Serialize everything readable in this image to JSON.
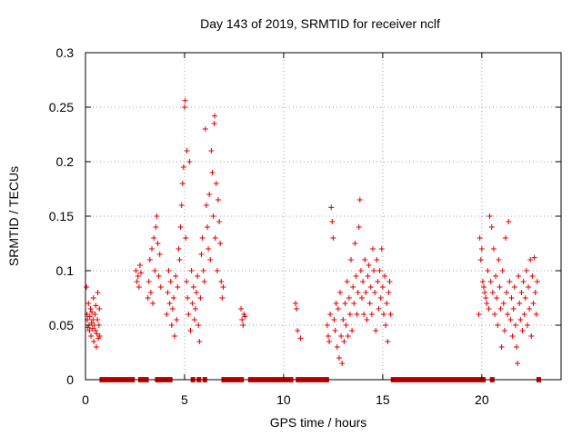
{
  "chart_data": {
    "type": "scatter",
    "title": "Day 143 of 2019, SRMTID for receiver nclf",
    "xlabel": "GPS time / hours",
    "ylabel": "SRMTID / TECUs",
    "xlim": [
      0,
      24
    ],
    "ylim": [
      0,
      0.3
    ],
    "xticks": [
      0,
      5,
      10,
      15,
      20
    ],
    "xtick_labels": [
      "0",
      "5",
      "10",
      "15",
      "20"
    ],
    "yticks": [
      0,
      0.05,
      0.1,
      0.15,
      0.2,
      0.25,
      0.3
    ],
    "ytick_labels": [
      "0",
      "0.05",
      "0.1",
      "0.15",
      "0.2",
      "0.25",
      "0.3"
    ],
    "grid": true,
    "marker": "plus",
    "color": "#e00000",
    "series": [
      {
        "name": "SRMTID",
        "points": [
          [
            0.05,
            0.085
          ],
          [
            0.08,
            0.06
          ],
          [
            0.1,
            0.055
          ],
          [
            0.12,
            0.048
          ],
          [
            0.15,
            0.07
          ],
          [
            0.18,
            0.05
          ],
          [
            0.2,
            0.045
          ],
          [
            0.22,
            0.058
          ],
          [
            0.25,
            0.065
          ],
          [
            0.28,
            0.04
          ],
          [
            0.3,
            0.052
          ],
          [
            0.32,
            0.062
          ],
          [
            0.35,
            0.047
          ],
          [
            0.38,
            0.055
          ],
          [
            0.4,
            0.075
          ],
          [
            0.42,
            0.035
          ],
          [
            0.45,
            0.05
          ],
          [
            0.48,
            0.06
          ],
          [
            0.5,
            0.045
          ],
          [
            0.52,
            0.068
          ],
          [
            0.55,
            0.03
          ],
          [
            0.58,
            0.042
          ],
          [
            0.6,
            0.055
          ],
          [
            0.62,
            0.08
          ],
          [
            0.65,
            0.038
          ],
          [
            0.68,
            0.05
          ],
          [
            0.7,
            0.065
          ],
          [
            0.72,
            0.04
          ],
          [
            2.55,
            0.1
          ],
          [
            2.6,
            0.09
          ],
          [
            2.65,
            0.095
          ],
          [
            2.7,
            0.085
          ],
          [
            2.75,
            0.105
          ],
          [
            2.8,
            0.098
          ],
          [
            3.15,
            0.075
          ],
          [
            3.2,
            0.09
          ],
          [
            3.25,
            0.11
          ],
          [
            3.3,
            0.08
          ],
          [
            3.35,
            0.12
          ],
          [
            3.4,
            0.07
          ],
          [
            3.45,
            0.13
          ],
          [
            3.5,
            0.1
          ],
          [
            3.55,
            0.14
          ],
          [
            3.6,
            0.15
          ],
          [
            3.65,
            0.125
          ],
          [
            3.7,
            0.095
          ],
          [
            3.75,
            0.115
          ],
          [
            3.8,
            0.085
          ],
          [
            4.1,
            0.06
          ],
          [
            4.15,
            0.08
          ],
          [
            4.2,
            0.1
          ],
          [
            4.25,
            0.07
          ],
          [
            4.3,
            0.09
          ],
          [
            4.35,
            0.05
          ],
          [
            4.4,
            0.065
          ],
          [
            4.45,
            0.075
          ],
          [
            4.5,
            0.04
          ],
          [
            4.55,
            0.095
          ],
          [
            4.6,
            0.055
          ],
          [
            4.65,
            0.085
          ],
          [
            4.7,
            0.12
          ],
          [
            4.75,
            0.11
          ],
          [
            4.8,
            0.14
          ],
          [
            4.85,
            0.16
          ],
          [
            4.9,
            0.18
          ],
          [
            4.95,
            0.195
          ],
          [
            5.0,
            0.25
          ],
          [
            5.03,
            0.256
          ],
          [
            5.06,
            0.13
          ],
          [
            5.1,
            0.09
          ],
          [
            5.12,
            0.21
          ],
          [
            5.15,
            0.075
          ],
          [
            5.2,
            0.06
          ],
          [
            5.25,
            0.2
          ],
          [
            5.3,
            0.045
          ],
          [
            5.35,
            0.1
          ],
          [
            5.4,
            0.07
          ],
          [
            5.45,
            0.085
          ],
          [
            5.5,
            0.055
          ],
          [
            5.55,
            0.065
          ],
          [
            5.6,
            0.08
          ],
          [
            5.65,
            0.095
          ],
          [
            5.7,
            0.05
          ],
          [
            5.75,
            0.035
          ],
          [
            5.8,
            0.075
          ],
          [
            5.85,
            0.115
          ],
          [
            5.9,
            0.13
          ],
          [
            5.95,
            0.1
          ],
          [
            6.0,
            0.09
          ],
          [
            6.05,
            0.23
          ],
          [
            6.1,
            0.16
          ],
          [
            6.15,
            0.14
          ],
          [
            6.2,
            0.12
          ],
          [
            6.25,
            0.17
          ],
          [
            6.3,
            0.11
          ],
          [
            6.35,
            0.21
          ],
          [
            6.4,
            0.19
          ],
          [
            6.45,
            0.15
          ],
          [
            6.5,
            0.235
          ],
          [
            6.52,
            0.242
          ],
          [
            6.55,
            0.13
          ],
          [
            6.6,
            0.18
          ],
          [
            6.65,
            0.1
          ],
          [
            6.7,
            0.165
          ],
          [
            6.75,
            0.145
          ],
          [
            6.8,
            0.125
          ],
          [
            6.85,
            0.09
          ],
          [
            6.9,
            0.075
          ],
          [
            6.95,
            0.085
          ],
          [
            7.85,
            0.065
          ],
          [
            7.9,
            0.055
          ],
          [
            7.95,
            0.05
          ],
          [
            8.0,
            0.06
          ],
          [
            8.05,
            0.058
          ],
          [
            10.6,
            0.07
          ],
          [
            10.65,
            0.065
          ],
          [
            10.7,
            0.045
          ],
          [
            10.85,
            0.038
          ],
          [
            12.2,
            0.05
          ],
          [
            12.25,
            0.04
          ],
          [
            12.3,
            0.035
          ],
          [
            12.35,
            0.06
          ],
          [
            12.4,
            0.158
          ],
          [
            12.45,
            0.145
          ],
          [
            12.5,
            0.13
          ],
          [
            12.55,
            0.055
          ],
          [
            12.6,
            0.045
          ],
          [
            12.65,
            0.07
          ],
          [
            12.7,
            0.03
          ],
          [
            12.75,
            0.065
          ],
          [
            12.8,
            0.02
          ],
          [
            12.85,
            0.08
          ],
          [
            12.9,
            0.04
          ],
          [
            12.95,
            0.015
          ],
          [
            13.0,
            0.055
          ],
          [
            13.05,
            0.035
          ],
          [
            13.1,
            0.07
          ],
          [
            13.15,
            0.05
          ],
          [
            13.2,
            0.09
          ],
          [
            13.25,
            0.04
          ],
          [
            13.3,
            0.075
          ],
          [
            13.35,
            0.06
          ],
          [
            13.4,
            0.11
          ],
          [
            13.45,
            0.045
          ],
          [
            13.5,
            0.085
          ],
          [
            13.55,
            0.07
          ],
          [
            13.6,
            0.125
          ],
          [
            13.65,
            0.095
          ],
          [
            13.7,
            0.06
          ],
          [
            13.75,
            0.08
          ],
          [
            13.8,
            0.14
          ],
          [
            13.85,
            0.165
          ],
          [
            13.9,
            0.1
          ],
          [
            13.95,
            0.075
          ],
          [
            14.0,
            0.09
          ],
          [
            14.05,
            0.06
          ],
          [
            14.1,
            0.11
          ],
          [
            14.15,
            0.08
          ],
          [
            14.2,
            0.055
          ],
          [
            14.25,
            0.095
          ],
          [
            14.3,
            0.105
          ],
          [
            14.35,
            0.07
          ],
          [
            14.4,
            0.085
          ],
          [
            14.45,
            0.06
          ],
          [
            14.5,
            0.12
          ],
          [
            14.55,
            0.1
          ],
          [
            14.6,
            0.08
          ],
          [
            14.65,
            0.045
          ],
          [
            14.7,
            0.11
          ],
          [
            14.75,
            0.09
          ],
          [
            14.8,
            0.065
          ],
          [
            14.85,
            0.1
          ],
          [
            14.9,
            0.075
          ],
          [
            14.95,
            0.12
          ],
          [
            15.0,
            0.085
          ],
          [
            15.05,
            0.06
          ],
          [
            15.1,
            0.095
          ],
          [
            15.15,
            0.05
          ],
          [
            15.2,
            0.07
          ],
          [
            15.25,
            0.035
          ],
          [
            15.3,
            0.08
          ],
          [
            15.35,
            0.09
          ],
          [
            15.4,
            0.06
          ],
          [
            19.85,
            0.06
          ],
          [
            19.9,
            0.13
          ],
          [
            19.95,
            0.11
          ],
          [
            20.0,
            0.12
          ],
          [
            20.05,
            0.09
          ],
          [
            20.1,
            0.085
          ],
          [
            20.15,
            0.08
          ],
          [
            20.2,
            0.075
          ],
          [
            20.25,
            0.07
          ],
          [
            20.3,
            0.1
          ],
          [
            20.35,
            0.065
          ],
          [
            20.4,
            0.15
          ],
          [
            20.45,
            0.09
          ],
          [
            20.5,
            0.14
          ],
          [
            20.55,
            0.08
          ],
          [
            20.6,
            0.12
          ],
          [
            20.65,
            0.06
          ],
          [
            20.7,
            0.095
          ],
          [
            20.75,
            0.075
          ],
          [
            20.8,
            0.05
          ],
          [
            20.85,
            0.11
          ],
          [
            20.9,
            0.085
          ],
          [
            20.95,
            0.065
          ],
          [
            21.0,
            0.03
          ],
          [
            21.05,
            0.1
          ],
          [
            21.1,
            0.07
          ],
          [
            21.15,
            0.045
          ],
          [
            21.2,
            0.13
          ],
          [
            21.25,
            0.08
          ],
          [
            21.3,
            0.06
          ],
          [
            21.35,
            0.145
          ],
          [
            21.4,
            0.09
          ],
          [
            21.45,
            0.055
          ],
          [
            21.5,
            0.075
          ],
          [
            21.55,
            0.04
          ],
          [
            21.6,
            0.065
          ],
          [
            21.65,
            0.085
          ],
          [
            21.7,
            0.05
          ],
          [
            21.75,
            0.03
          ],
          [
            21.8,
            0.015
          ],
          [
            21.85,
            0.095
          ],
          [
            21.9,
            0.07
          ],
          [
            21.95,
            0.055
          ],
          [
            22.0,
            0.08
          ],
          [
            22.05,
            0.045
          ],
          [
            22.1,
            0.09
          ],
          [
            22.15,
            0.06
          ],
          [
            22.2,
            0.075
          ],
          [
            22.25,
            0.1
          ],
          [
            22.3,
            0.05
          ],
          [
            22.35,
            0.085
          ],
          [
            22.4,
            0.065
          ],
          [
            22.45,
            0.11
          ],
          [
            22.5,
            0.04
          ],
          [
            22.55,
            0.095
          ],
          [
            22.6,
            0.07
          ],
          [
            22.65,
            0.112
          ],
          [
            22.7,
            0.08
          ],
          [
            22.75,
            0.06
          ],
          [
            22.8,
            0.09
          ]
        ]
      }
    ],
    "zero_segments": [
      [
        0.8,
        2.4
      ],
      [
        2.75,
        3.1
      ],
      [
        3.6,
        4.3
      ],
      [
        5.4,
        5.45
      ],
      [
        5.7,
        5.75
      ],
      [
        6.0,
        6.05
      ],
      [
        6.95,
        7.9
      ],
      [
        8.3,
        10.4
      ],
      [
        10.7,
        12.2
      ],
      [
        15.5,
        19.8
      ],
      [
        19.95,
        20.1
      ],
      [
        20.5,
        20.55
      ],
      [
        22.85,
        22.9
      ]
    ]
  }
}
